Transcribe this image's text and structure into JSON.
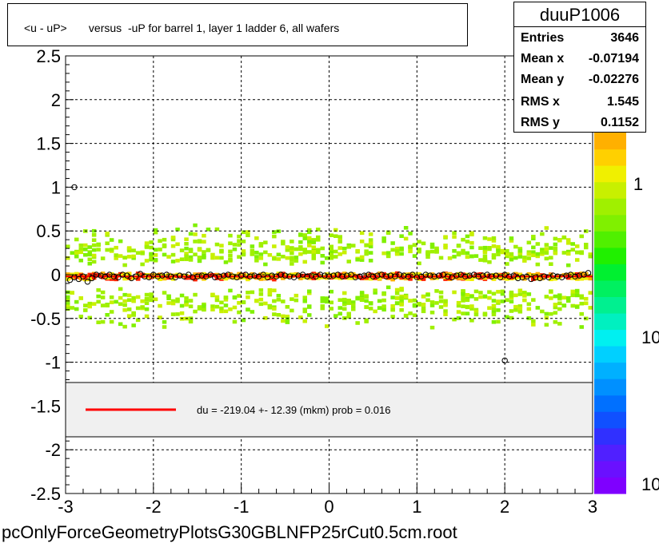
{
  "title": "<u - uP>       versus  -uP for barrel 1, layer 1 ladder 6, all wafers",
  "stats": {
    "name": "duuP1006",
    "rows": [
      {
        "label": "Entries",
        "value": "3646"
      },
      {
        "label": "Mean x",
        "value": "-0.07194"
      },
      {
        "label": "Mean y",
        "value": "-0.02276"
      },
      {
        "label": "RMS x",
        "value": "1.545"
      },
      {
        "label": "RMS y",
        "value": "0.1152"
      }
    ]
  },
  "legend": {
    "text": "du = -219.04 +- 12.39 (mkm) prob = 0.016",
    "line_color": "#ff0000"
  },
  "filename": "pcOnlyForceGeometryPlotsG30GBLNFP25rCut0.5cm.root",
  "colors": {
    "frame": "#000000",
    "grid": "#000000",
    "profile_line": "#ff0000",
    "legend_bg": "#f0f0f0"
  },
  "chart_data": {
    "type": "heatmap",
    "title": "<u - uP>       versus  -uP for barrel 1, layer 1 ladder 6, all wafers",
    "xlabel": "",
    "ylabel": "",
    "xlim": [
      -3,
      3
    ],
    "ylim": [
      -2.5,
      2.5
    ],
    "x_ticks": [
      "-3",
      "-2",
      "-1",
      "0",
      "1",
      "2",
      "3"
    ],
    "y_ticks": [
      "-2.5",
      "-2",
      "-1.5",
      "-1",
      "-0.5",
      "0",
      "0.5",
      "1",
      "1.5",
      "2",
      "2.5"
    ],
    "grid": true,
    "colorbar_labels": [
      "1",
      "10",
      "10"
    ],
    "colorbar_scale": "log",
    "band": {
      "y_center": -0.02,
      "y_halfwidth_dense": 0.08,
      "y_halfwidth_sparse": 0.5
    },
    "profile_points": {
      "x": [
        -2.95,
        -2.9,
        -2.85,
        -2.8,
        -2.75,
        -2.7,
        -2.65,
        -2.6,
        -2.55,
        -2.5,
        -2.45,
        -2.4,
        -2.35,
        -2.3,
        -2.25,
        -2.2,
        -2.15,
        -2.1,
        -2.05,
        -2.0,
        -1.95,
        -1.9,
        -1.85,
        -1.8,
        -1.75,
        -1.7,
        -1.65,
        -1.6,
        -1.55,
        -1.5,
        -1.45,
        -1.4,
        -1.35,
        -1.3,
        -1.25,
        -1.2,
        -1.15,
        -1.1,
        -1.05,
        -1.0,
        -0.95,
        -0.9,
        -0.85,
        -0.8,
        -0.75,
        -0.7,
        -0.65,
        -0.6,
        -0.55,
        -0.5,
        -0.45,
        -0.4,
        -0.35,
        -0.3,
        -0.25,
        -0.2,
        -0.15,
        -0.1,
        -0.05,
        0.0,
        0.05,
        0.1,
        0.15,
        0.2,
        0.25,
        0.3,
        0.35,
        0.4,
        0.45,
        0.5,
        0.55,
        0.6,
        0.65,
        0.7,
        0.75,
        0.8,
        0.85,
        0.9,
        0.95,
        1.0,
        1.05,
        1.1,
        1.15,
        1.2,
        1.25,
        1.3,
        1.35,
        1.4,
        1.45,
        1.5,
        1.55,
        1.6,
        1.65,
        1.7,
        1.75,
        1.8,
        1.85,
        1.9,
        1.95,
        2.0,
        2.05,
        2.1,
        2.15,
        2.2,
        2.25,
        2.3,
        2.35,
        2.4,
        2.45,
        2.5,
        2.55,
        2.6,
        2.65,
        2.7,
        2.75,
        2.8,
        2.85,
        2.9,
        2.95
      ],
      "y": [
        -0.06,
        -0.03,
        -0.05,
        -0.02,
        -0.08,
        -0.04,
        0.0,
        -0.01,
        -0.02,
        0.0,
        -0.02,
        -0.03,
        0.0,
        -0.01,
        -0.04,
        -0.02,
        0.01,
        -0.02,
        -0.03,
        0.0,
        -0.02,
        -0.01,
        0.0,
        -0.02,
        -0.03,
        -0.01,
        -0.02,
        0.0,
        -0.03,
        -0.02,
        -0.01,
        -0.02,
        0.0,
        -0.03,
        -0.02,
        -0.01,
        0.0,
        -0.02,
        -0.03,
        -0.01,
        0.0,
        -0.02,
        -0.01,
        -0.02,
        0.0,
        -0.03,
        -0.01,
        -0.02,
        0.0,
        -0.01,
        -0.02,
        -0.03,
        -0.01,
        0.0,
        -0.02,
        -0.01,
        -0.02,
        0.0,
        -0.01,
        -0.02,
        -0.01,
        0.0,
        -0.02,
        -0.01,
        0.0,
        -0.03,
        -0.02,
        -0.01,
        0.0,
        -0.02,
        -0.01,
        0.0,
        -0.02,
        -0.01,
        -0.02,
        0.0,
        -0.01,
        -0.02,
        0.0,
        -0.03,
        -0.02,
        0.0,
        -0.01,
        -0.02,
        -0.01,
        0.0,
        -0.02,
        -0.03,
        -0.01,
        0.0,
        -0.02,
        -0.01,
        0.0,
        -0.02,
        -0.01,
        0.0,
        -0.02,
        -0.01,
        -0.03,
        0.0,
        -0.02,
        -0.01,
        -0.04,
        -0.03,
        -0.02,
        -0.05,
        -0.03,
        -0.04,
        -0.02,
        -0.03,
        -0.01,
        -0.02,
        -0.03,
        -0.01,
        0.0,
        -0.02,
        -0.01,
        0.0,
        0.02
      ]
    },
    "outlier_points": {
      "x": [
        -2.9,
        2.0
      ],
      "y": [
        1.0,
        -0.98
      ]
    },
    "fit_line": {
      "y": -0.02
    }
  }
}
